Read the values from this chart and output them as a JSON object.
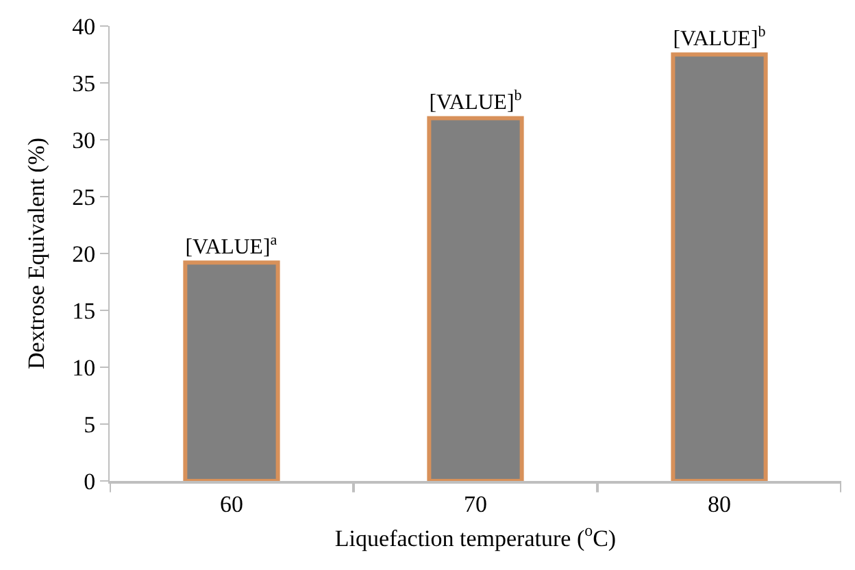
{
  "chart_data": {
    "type": "bar",
    "xlabel": "Liquefaction temperature ($^{o}$C)",
    "ylabel": "Dextrose Equivalent (%)",
    "categories": [
      "60",
      "70",
      "80"
    ],
    "values": [
      19.2,
      31.9,
      37.5
    ],
    "value_labels": [
      "[VALUE]$^{a}$",
      "[VALUE]$^{b}$",
      "[VALUE]$^{b}$"
    ],
    "color": "#808080",
    "ylim": [
      0,
      40
    ],
    "yticks": [
      0,
      5,
      10,
      15,
      20,
      25,
      30,
      35,
      40
    ],
    "legend": false
  }
}
